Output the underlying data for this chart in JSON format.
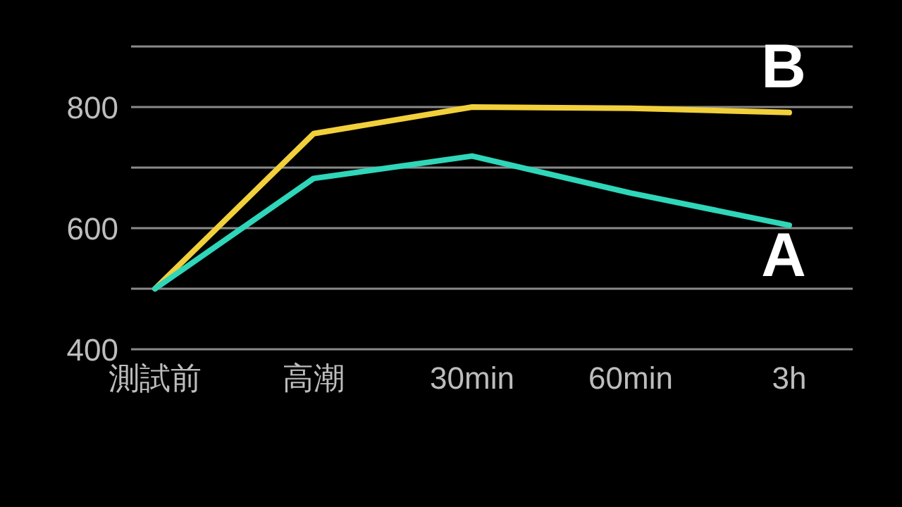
{
  "chart_data": {
    "type": "line",
    "categories": [
      "測試前",
      "高潮",
      "30min",
      "60min",
      "3h"
    ],
    "series": [
      {
        "name": "B",
        "color": "#f2d03b",
        "values": [
          500,
          756,
          800,
          798,
          791
        ]
      },
      {
        "name": "A",
        "color": "#2fd6b9",
        "values": [
          500,
          682,
          719,
          658,
          605
        ]
      }
    ],
    "ylim": [
      400,
      900
    ],
    "yticks": [
      400,
      {
        "value": 500,
        "label": null
      },
      600,
      {
        "value": 700,
        "label": null
      },
      800,
      {
        "value": 900,
        "label": null
      }
    ],
    "grid": "y"
  }
}
